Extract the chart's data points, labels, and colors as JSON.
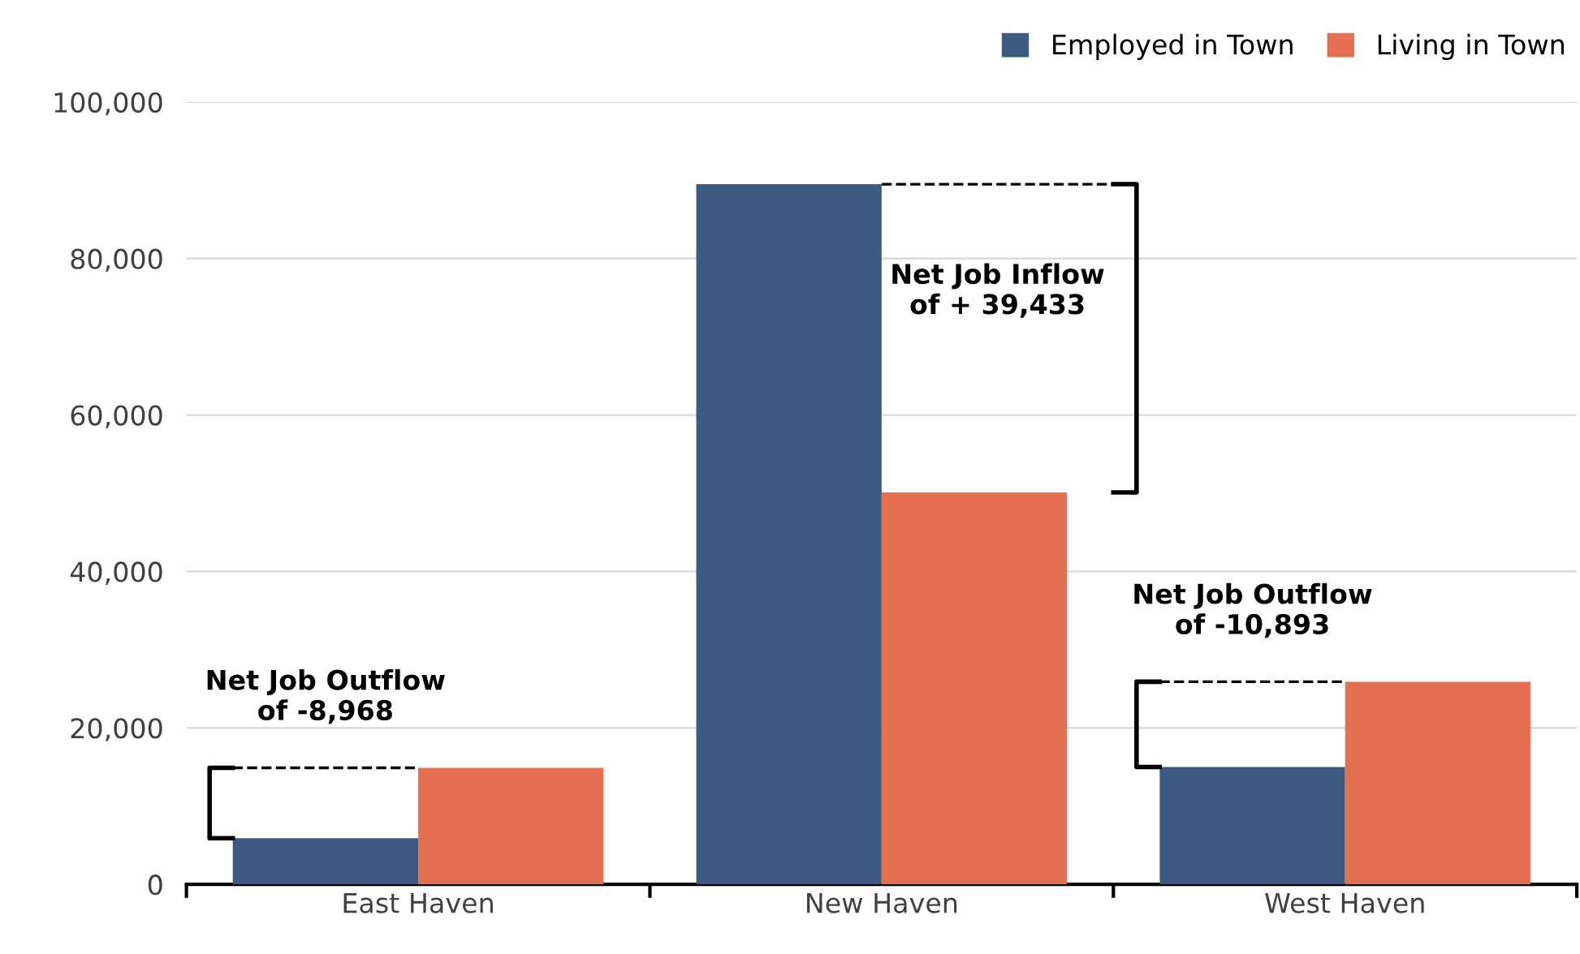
{
  "chart_data": {
    "type": "bar",
    "categories": [
      "East Haven",
      "New Haven",
      "West Haven"
    ],
    "series": [
      {
        "name": "Employed in Town",
        "color": "#3d5a80",
        "values": [
          5900,
          89500,
          15000
        ]
      },
      {
        "name": "Living in Town",
        "color": "#e76f51",
        "values": [
          14900,
          50100,
          25900
        ]
      }
    ],
    "ylim": [
      0,
      100000
    ],
    "yticks": [
      0,
      {
        "value": 20000,
        "label": "20,000"
      },
      {
        "value": 40000,
        "label": "40,000"
      },
      {
        "value": 60000,
        "label": "60,000"
      },
      {
        "value": 80000,
        "label": "80,000"
      },
      {
        "value": 100000,
        "label": "100,000"
      }
    ],
    "grid": "y",
    "legend": "top right",
    "annotations": [
      "Net Job Outflow\nof -8,968",
      "Net Job Inflow\nof + 39,433",
      "Net Job Outflow\nof -10,893"
    ]
  }
}
